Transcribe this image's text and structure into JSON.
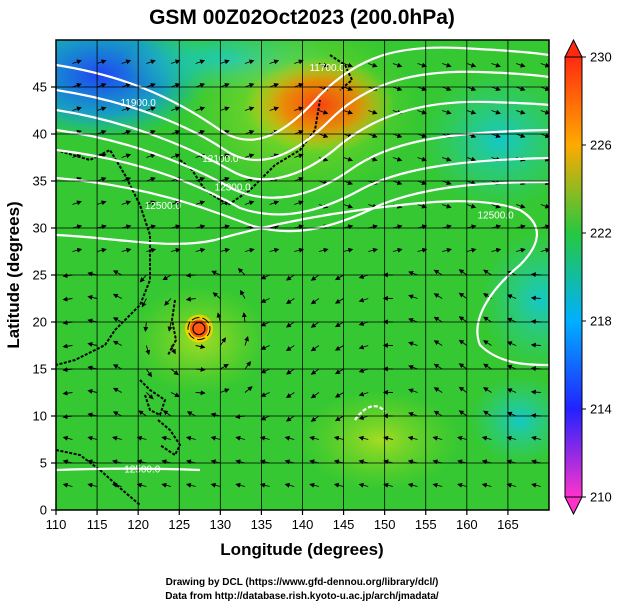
{
  "chart_data": {
    "type": "heatmap",
    "title": "GSM 00Z02Oct2023 (200.0hPa)",
    "xlabel": "Longitude (degrees)",
    "ylabel": "Latitude  (degrees)",
    "xlim": [
      110,
      170
    ],
    "ylim": [
      0,
      50
    ],
    "xticks": [
      110,
      115,
      120,
      125,
      130,
      135,
      140,
      145,
      150,
      155,
      160,
      165
    ],
    "yticks": [
      0,
      5,
      10,
      15,
      20,
      25,
      30,
      35,
      40,
      45
    ],
    "grid": true,
    "colorbar": {
      "min": 210,
      "max": 230,
      "ticks": [
        210,
        214,
        218,
        222,
        226,
        230
      ],
      "colors": [
        "#ff33cc",
        "#2222ff",
        "#00b0ff",
        "#27c840",
        "#ffaa00",
        "#ff2a10"
      ],
      "placement": "right"
    },
    "contour_labels": [
      {
        "text": "11700.0",
        "x": 143.0,
        "y": 46.7
      },
      {
        "text": "11900.0",
        "x": 120.0,
        "y": 43.0
      },
      {
        "text": "12100.0",
        "x": 130.0,
        "y": 37.0
      },
      {
        "text": "12300.0",
        "x": 131.5,
        "y": 34.0
      },
      {
        "text": "12500.0",
        "x": 123.0,
        "y": 32.0
      },
      {
        "text": "12500.0",
        "x": 163.5,
        "y": 31.0
      },
      {
        "text": "12500.0",
        "x": 120.5,
        "y": 4.0
      }
    ],
    "features": {
      "typhoon_center": {
        "x": 127.4,
        "y": 19.3
      }
    }
  },
  "credits": {
    "line1": "Drawing by DCL (https://www.gfd-dennou.org/library/dcl/)",
    "line2": "Data from http://database.rish.kyoto-u.ac.jp/arch/jmadata/"
  }
}
